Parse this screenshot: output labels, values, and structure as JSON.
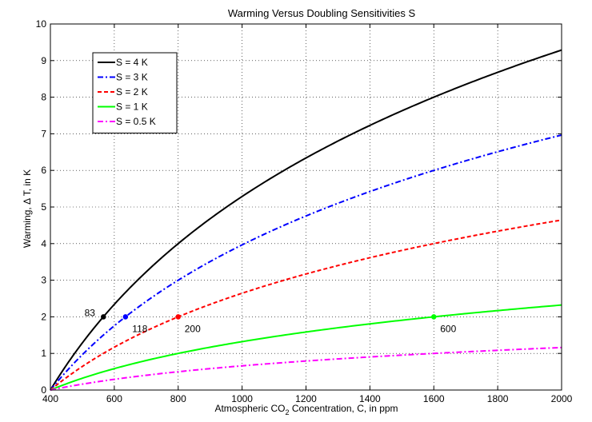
{
  "chart_data": {
    "type": "line",
    "title": "Warming Versus Doubling Sensitivities S",
    "xlabel": {
      "pre": "Atmospheric CO",
      "sub": "2",
      "post": " Concentration, C, in ppm"
    },
    "ylabel": "Warming, Δ T,  in K",
    "xlim": [
      400,
      2000
    ],
    "ylim": [
      0,
      10
    ],
    "x_ticks": [
      400,
      600,
      800,
      1000,
      1200,
      1400,
      1600,
      1800,
      2000
    ],
    "y_ticks": [
      0,
      1,
      2,
      3,
      4,
      5,
      6,
      7,
      8,
      9,
      10
    ],
    "grid": true,
    "legend_position": "top-left",
    "baseline_ppm": 400,
    "series": [
      {
        "name": "S = 4 K",
        "sensitivity": 4,
        "color": "#000000",
        "style": "solid"
      },
      {
        "name": "S = 3 K",
        "sensitivity": 3,
        "color": "#0000ff",
        "style": "dashdot"
      },
      {
        "name": "S = 2 K",
        "sensitivity": 2,
        "color": "#ff0000",
        "style": "dashed"
      },
      {
        "name": "S = 1 K",
        "sensitivity": 1,
        "color": "#00ff00",
        "style": "solid"
      },
      {
        "name": "S = 0.5 K",
        "sensitivity": 0.5,
        "color": "#ff00ff",
        "style": "dashdot"
      }
    ],
    "markers": [
      {
        "x": 566,
        "y": 2,
        "color": "#000000",
        "label": "83",
        "label_side": "left"
      },
      {
        "x": 635,
        "y": 2,
        "color": "#0000ff",
        "label": "118",
        "label_side": "below"
      },
      {
        "x": 800,
        "y": 2,
        "color": "#ff0000",
        "label": "200",
        "label_side": "below"
      },
      {
        "x": 1600,
        "y": 2,
        "color": "#00ff00",
        "label": "600",
        "label_side": "below"
      }
    ]
  }
}
